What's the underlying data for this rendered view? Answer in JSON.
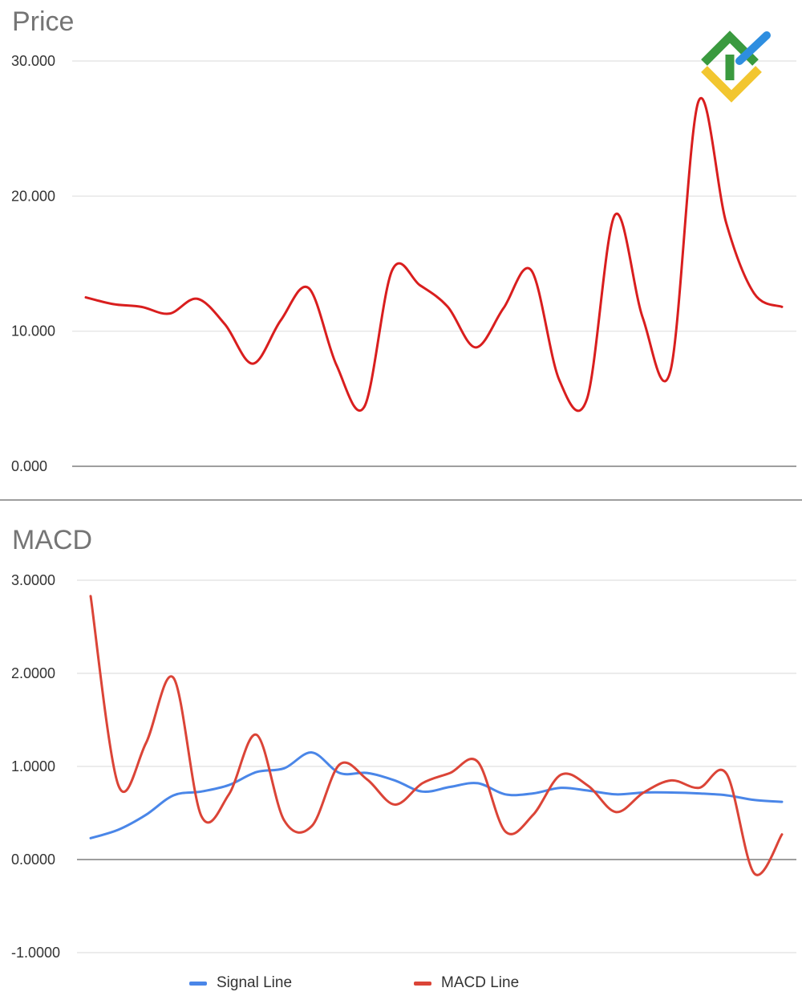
{
  "charts": {
    "price": {
      "title": "Price"
    },
    "macd": {
      "title": "MACD"
    }
  },
  "legend": {
    "signal_label": "Signal Line",
    "macd_label": "MACD Line"
  },
  "colors": {
    "price_line": "#d91e1e",
    "macd_line": "#db4437",
    "signal_line": "#4a86e8",
    "gridline": "#e0e0e0",
    "baseline": "#9e9e9e"
  },
  "chart_data": [
    {
      "type": "line",
      "title": "Price",
      "xlabel": "",
      "ylabel": "",
      "ylim": [
        0,
        30
      ],
      "yticks": [
        "0.000",
        "10.000",
        "20.000",
        "30.000"
      ],
      "ytick_values": [
        0,
        10,
        20,
        30
      ],
      "grid": true,
      "legend": "none",
      "series": [
        {
          "color": "#d91e1e",
          "values": [
            12.5,
            12.0,
            11.8,
            11.3,
            12.4,
            10.5,
            7.6,
            10.8,
            13.2,
            7.5,
            4.4,
            14.5,
            13.4,
            11.8,
            8.8,
            11.7,
            14.5,
            6.4,
            5.0,
            18.6,
            11.0,
            7.1,
            27.0,
            18.0,
            12.8,
            11.8
          ]
        }
      ]
    },
    {
      "type": "line",
      "title": "MACD",
      "xlabel": "",
      "ylabel": "",
      "ylim": [
        -1,
        3
      ],
      "yticks": [
        "-1.0000",
        "0.0000",
        "1.0000",
        "2.0000",
        "3.0000"
      ],
      "ytick_values": [
        -1,
        0,
        1,
        2,
        3
      ],
      "grid": true,
      "legend": "bottom",
      "series": [
        {
          "name": "Signal Line",
          "color": "#4a86e8",
          "values": [
            0.23,
            0.32,
            0.48,
            0.69,
            0.73,
            0.8,
            0.94,
            0.98,
            1.15,
            0.93,
            0.93,
            0.85,
            0.73,
            0.78,
            0.82,
            0.7,
            0.71,
            0.77,
            0.74,
            0.7,
            0.72,
            0.72,
            0.71,
            0.69,
            0.64,
            0.62
          ]
        },
        {
          "name": "MACD Line",
          "color": "#db4437",
          "values": [
            2.83,
            0.8,
            1.25,
            1.95,
            0.47,
            0.7,
            1.34,
            0.42,
            0.36,
            1.02,
            0.86,
            0.59,
            0.82,
            0.93,
            1.05,
            0.3,
            0.48,
            0.91,
            0.79,
            0.51,
            0.72,
            0.85,
            0.77,
            0.92,
            -0.15,
            0.27
          ]
        }
      ]
    }
  ]
}
